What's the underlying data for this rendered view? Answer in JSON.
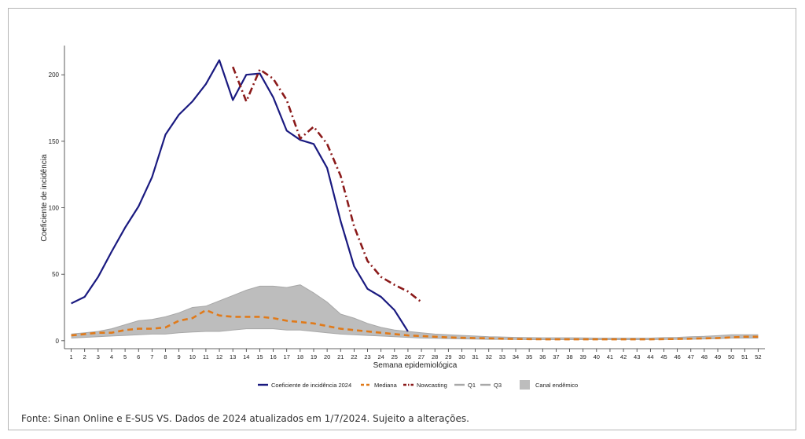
{
  "chart_data": {
    "type": "line",
    "title": "",
    "xlabel": "Semana epidemiológica",
    "ylabel": "Coeficiente de incidência",
    "ylim": [
      -6,
      222
    ],
    "xlim": [
      0.5,
      52.5
    ],
    "yticks": [
      0,
      50,
      100,
      150,
      200
    ],
    "x": [
      1,
      2,
      3,
      4,
      5,
      6,
      7,
      8,
      9,
      10,
      11,
      12,
      13,
      14,
      15,
      16,
      17,
      18,
      19,
      20,
      21,
      22,
      23,
      24,
      25,
      26,
      27,
      28,
      29,
      30,
      31,
      32,
      33,
      34,
      35,
      36,
      37,
      38,
      39,
      40,
      41,
      42,
      43,
      44,
      45,
      46,
      47,
      48,
      49,
      50,
      51,
      52
    ],
    "series": [
      {
        "name": "Coeficiente de incidência 2024",
        "color": "#1a1a80",
        "style": "solid",
        "x": [
          1,
          2,
          3,
          4,
          5,
          6,
          7,
          8,
          9,
          10,
          11,
          12,
          13,
          14,
          15,
          16,
          17,
          18,
          19,
          20,
          21,
          22,
          23,
          24,
          25,
          26
        ],
        "values": [
          28,
          33,
          48,
          67,
          85,
          101,
          123,
          155,
          170,
          180,
          193,
          211,
          181,
          200,
          201,
          183,
          158,
          151,
          148,
          130,
          90,
          56,
          39,
          33,
          23,
          7
        ]
      },
      {
        "name": "Mediana",
        "color": "#e07a1a",
        "style": "dashed",
        "x": [
          1,
          2,
          3,
          4,
          5,
          6,
          7,
          8,
          9,
          10,
          11,
          12,
          13,
          14,
          15,
          16,
          17,
          18,
          19,
          20,
          21,
          22,
          23,
          24,
          25,
          26,
          27,
          28,
          29,
          30,
          31,
          32,
          33,
          34,
          35,
          36,
          37,
          38,
          39,
          40,
          41,
          42,
          43,
          44,
          45,
          46,
          47,
          48,
          49,
          50,
          51,
          52
        ],
        "values": [
          4,
          5,
          6,
          6,
          8,
          9,
          9,
          10,
          15,
          17,
          23,
          19,
          18,
          18,
          18,
          17,
          15,
          14,
          13,
          11,
          9,
          8,
          7,
          6,
          5,
          4,
          3.5,
          3,
          2.5,
          2.2,
          2,
          1.8,
          1.5,
          1.3,
          1.2,
          1.1,
          1,
          1,
          1,
          1,
          1,
          1,
          1,
          1,
          1.2,
          1.3,
          1.5,
          1.8,
          2,
          2.5,
          3,
          3
        ]
      },
      {
        "name": "Nowcasting",
        "color": "#8b1a1a",
        "style": "dashdot",
        "x": [
          13,
          14,
          15,
          16,
          17,
          18,
          19,
          20,
          21,
          22,
          23,
          24,
          25,
          26,
          27
        ],
        "values": [
          206,
          180,
          204,
          197,
          181,
          152,
          161,
          148,
          124,
          86,
          60,
          48,
          42,
          37,
          29
        ]
      }
    ],
    "band": {
      "name": "Canal endêmico",
      "color": "#bdbdbd",
      "q1_name": "Q1",
      "q3_name": "Q3",
      "x": [
        1,
        2,
        3,
        4,
        5,
        6,
        7,
        8,
        9,
        10,
        11,
        12,
        13,
        14,
        15,
        16,
        17,
        18,
        19,
        20,
        21,
        22,
        23,
        24,
        25,
        26,
        27,
        28,
        29,
        30,
        31,
        32,
        33,
        34,
        35,
        36,
        37,
        38,
        39,
        40,
        41,
        42,
        43,
        44,
        45,
        46,
        47,
        48,
        49,
        50,
        51,
        52
      ],
      "q1": [
        2,
        2.5,
        3,
        3.5,
        4,
        4.5,
        5,
        5,
        6,
        6.5,
        7,
        7,
        8,
        9,
        9,
        9,
        8,
        8,
        7,
        6,
        5,
        4.5,
        4,
        3.5,
        3,
        2.5,
        2,
        1.8,
        1.6,
        1.4,
        1.2,
        1,
        1,
        0.9,
        0.8,
        0.8,
        0.8,
        0.8,
        0.8,
        0.8,
        0.8,
        0.8,
        0.8,
        0.8,
        0.9,
        1,
        1.1,
        1.3,
        1.5,
        2,
        2,
        2
      ],
      "q3": [
        5,
        6,
        7,
        9,
        12,
        15,
        16,
        18,
        21,
        25,
        26,
        30,
        34,
        38,
        41,
        41,
        40,
        42,
        36,
        29,
        20,
        17,
        13,
        10,
        8,
        7,
        6,
        5,
        4.5,
        4,
        3.5,
        3,
        2.8,
        2.5,
        2.3,
        2.2,
        2.2,
        2.2,
        2.1,
        2,
        2,
        2,
        2,
        2,
        2.3,
        2.5,
        3,
        3.3,
        3.8,
        4.5,
        4.5,
        4.5
      ]
    },
    "legend_position": "bottom",
    "grid": false
  },
  "source_note": "Fonte: Sinan Online e E-SUS VS. Dados de 2024 atualizados em 1/7/2024. Sujeito a alterações."
}
